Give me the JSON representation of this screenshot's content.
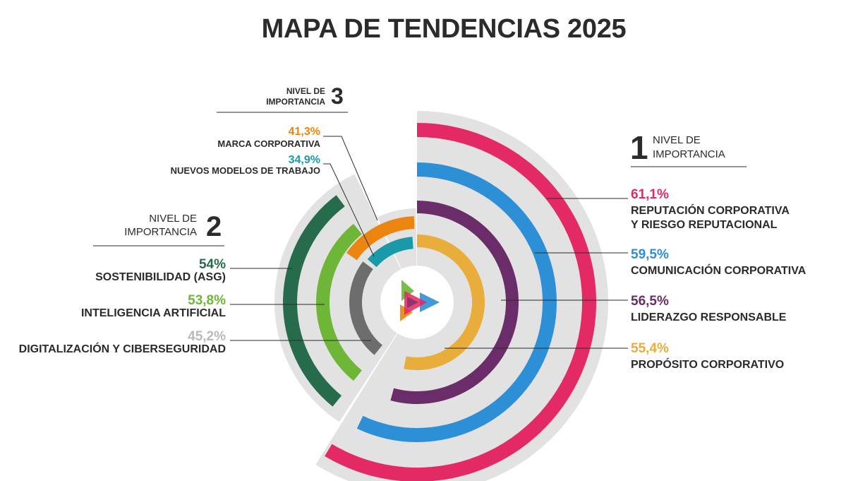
{
  "title": "MAPA DE TENDENCIAS 2025",
  "chart_data": {
    "type": "radial_bar",
    "title": "MAPA DE TENDENCIAS 2025",
    "unit": "%",
    "levels": [
      {
        "number": "1",
        "label_line1": "NIVEL DE",
        "label_line2": "IMPORTANCIA",
        "items": [
          {
            "name_lines": [
              "REPUTACIÓN CORPORATIVA",
              "Y RIESGO REPUTACIONAL"
            ],
            "value": 61.1,
            "value_label": "61,1%",
            "color": "#e42a65"
          },
          {
            "name_lines": [
              "COMUNICACIÓN CORPORATIVA"
            ],
            "value": 59.5,
            "value_label": "59,5%",
            "color": "#2d8fd5"
          },
          {
            "name_lines": [
              "LIDERAZGO RESPONSABLE"
            ],
            "value": 56.5,
            "value_label": "56,5%",
            "color": "#6b2c6a"
          },
          {
            "name_lines": [
              "PROPÓSITO CORPORATIVO"
            ],
            "value": 55.4,
            "value_label": "55,4%",
            "color": "#e9ad3b"
          }
        ]
      },
      {
        "number": "2",
        "label_line1": "NIVEL DE",
        "label_line2": "IMPORTANCIA",
        "items": [
          {
            "name_lines": [
              "SOSTENIBILIDAD (ASG)"
            ],
            "value": 54,
            "value_label": "54%",
            "color": "#266b4c"
          },
          {
            "name_lines": [
              "INTELIGENCIA ARTIFICIAL"
            ],
            "value": 53.8,
            "value_label": "53,8%",
            "color": "#6db637"
          },
          {
            "name_lines": [
              "DIGITALIZACIÓN Y CIBERSEGURIDAD"
            ],
            "value": 45.2,
            "value_label": "45,2%",
            "color": "#b9b9b9",
            "bar_color": "#6d6d6d"
          }
        ]
      },
      {
        "number": "3",
        "label_line1": "NIVEL DE",
        "label_line2": "IMPORTANCIA",
        "items": [
          {
            "name_lines": [
              "MARCA CORPORATIVA"
            ],
            "value": 41.3,
            "value_label": "41,3%",
            "color": "#ec8410"
          },
          {
            "name_lines": [
              "NUEVOS MODELOS DE TRABAJO"
            ],
            "value": 34.9,
            "value_label": "34,9%",
            "color": "#1a9aa8"
          }
        ]
      }
    ]
  }
}
